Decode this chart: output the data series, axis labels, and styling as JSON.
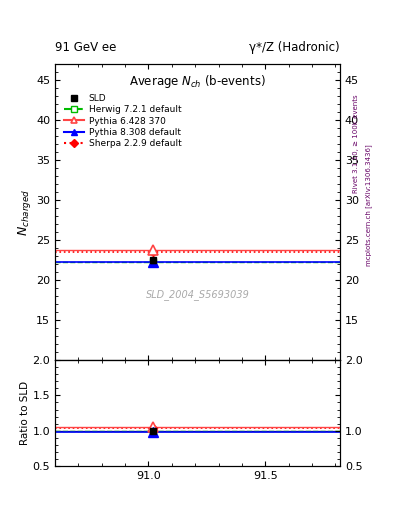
{
  "title_left": "91 GeV ee",
  "title_right": "γ*/Z (Hadronic)",
  "plot_title": "Average N",
  "plot_title_sub": "ch",
  "plot_title_suffix": " (b-events)",
  "ylabel_main": "N_{charged}",
  "ylabel_ratio": "Ratio to SLD",
  "watermark": "SLD_2004_S5693039",
  "right_label_top": "Rivet 3.1.10, ≥ 100k events",
  "right_label_bottom": "mcplots.cern.ch [arXiv:1306.3436]",
  "xlim": [
    90.6,
    91.82
  ],
  "xticks": [
    91.0,
    91.5
  ],
  "ylim_main": [
    10,
    47
  ],
  "yticks_main": [
    15,
    20,
    25,
    30,
    35,
    40,
    45
  ],
  "ylim_ratio": [
    0.5,
    2.0
  ],
  "yticks_ratio": [
    0.5,
    1.0,
    1.5,
    2.0
  ],
  "data_x": 91.02,
  "sld_value": 22.5,
  "sld_error": 0.3,
  "herwig_value": 22.3,
  "pythia6_value": 23.7,
  "pythia8_value": 22.22,
  "sherpa_value": 23.5,
  "herwig_color": "#00bb00",
  "pythia6_color": "#ff4444",
  "pythia8_color": "#0000ff",
  "sherpa_color": "#ff0000"
}
